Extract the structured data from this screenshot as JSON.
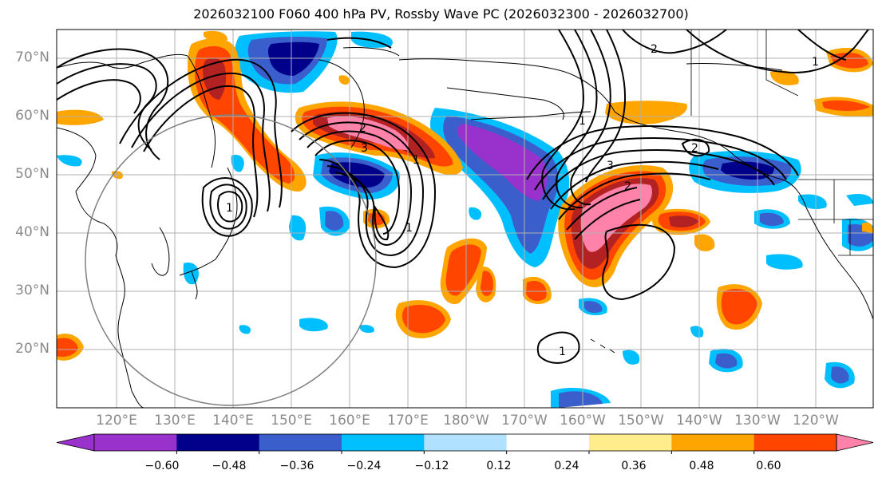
{
  "title": "2026032100 F060 400 hPa PV, Rossby Wave PC (2026032300 - 2026032700)",
  "lat_labels": [
    "70°N",
    "60°N",
    "50°N",
    "40°N",
    "30°N",
    "20°N"
  ],
  "lon_labels": [
    "120°E",
    "130°E",
    "140°E",
    "150°E",
    "160°E",
    "170°E",
    "180°W",
    "170°W",
    "160°W",
    "150°W",
    "140°W",
    "130°W",
    "120°W"
  ],
  "contour_labels": [
    "2",
    "1",
    "1",
    "2",
    "2",
    "3",
    "1",
    "1",
    "3",
    "2",
    "1",
    "1"
  ],
  "colorbar": {
    "levels": [
      "−0.60",
      "−0.48",
      "−0.36",
      "−0.24",
      "−0.12",
      "0.12",
      "0.24",
      "0.36",
      "0.48",
      "0.60"
    ],
    "colors": [
      "#9932CC",
      "#00008B",
      "#3A5FCD",
      "#00BFFF",
      "#B0E2FF",
      "#FFFFFF",
      "#FFEC8B",
      "#FFA500",
      "#FF4500",
      "#B22222",
      "#FF82AB"
    ]
  },
  "colors": {
    "neg_extreme": "#9932CC",
    "neg_strong": "#00008B",
    "neg_mid": "#3A5FCD",
    "neg_low": "#00BFFF",
    "neg_weak": "#B0E2FF",
    "pos_weak": "#FFEC8B",
    "pos_low": "#FFA500",
    "pos_mid": "#FF4500",
    "pos_strong": "#B22222",
    "pos_extreme": "#FF82AB"
  }
}
